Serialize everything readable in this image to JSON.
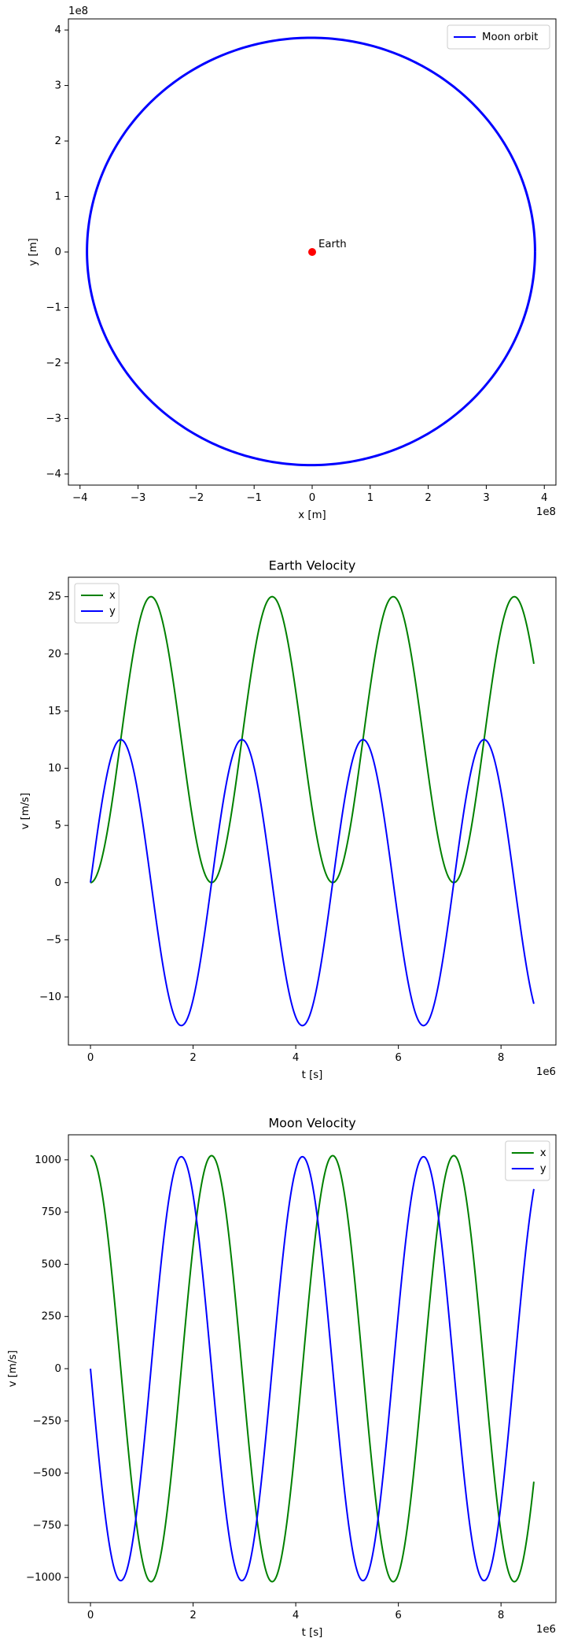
{
  "chart_data": [
    {
      "type": "line",
      "title": "",
      "xlabel": "x [m]",
      "ylabel": "y [m]",
      "x_offset": "1e8",
      "y_offset": "1e8",
      "xlim": [
        -4.2,
        4.2
      ],
      "ylim": [
        -4.2,
        4.2
      ],
      "xticks": [
        -4,
        -3,
        -2,
        -1,
        0,
        1,
        2,
        3,
        4
      ],
      "yticks": [
        -4,
        -3,
        -2,
        -1,
        0,
        1,
        2,
        3,
        4
      ],
      "xtick_labels": [
        "−4",
        "−3",
        "−2",
        "−1",
        "0",
        "1",
        "2",
        "3",
        "4"
      ],
      "ytick_labels": [
        "−4",
        "−3",
        "−2",
        "−1",
        "0",
        "1",
        "2",
        "3",
        "4"
      ],
      "grid": false,
      "legend_position": "top-right",
      "series": [
        {
          "name": "Moon orbit",
          "color": "#0000ff",
          "shape": "ellipse",
          "center": [
            -0.02,
            0.01
          ],
          "radius_x": 3.86,
          "radius_y": 3.85
        }
      ],
      "points": [
        {
          "label": "Earth",
          "x": 0.0,
          "y": 0.0,
          "color": "#ff0000"
        }
      ]
    },
    {
      "type": "line",
      "title": "Earth Velocity",
      "xlabel": "t [s]",
      "ylabel": "v [m/s]",
      "x_offset": "1e6",
      "xlim": [
        -0.43,
        9.07
      ],
      "ylim": [
        -14.2,
        26.7
      ],
      "xticks": [
        0,
        2,
        4,
        6,
        8
      ],
      "yticks": [
        -10,
        -5,
        0,
        5,
        10,
        15,
        20,
        25
      ],
      "xtick_labels": [
        "0",
        "2",
        "4",
        "6",
        "8"
      ],
      "ytick_labels": [
        "−10",
        "−5",
        "0",
        "5",
        "10",
        "15",
        "20",
        "25"
      ],
      "grid": false,
      "legend_position": "top-left",
      "t_end": 8.64,
      "period": 2.36,
      "series": [
        {
          "name": "x",
          "color": "#008000",
          "amplitude": 12.5,
          "offset": 12.5,
          "phase_shape": "one-minus-cos"
        },
        {
          "name": "y",
          "color": "#0000ff",
          "amplitude": 12.5,
          "offset": 0,
          "phase_shape": "sin"
        }
      ]
    },
    {
      "type": "line",
      "title": "Moon Velocity",
      "xlabel": "t [s]",
      "ylabel": "v [m/s]",
      "x_offset": "1e6",
      "xlim": [
        -0.43,
        9.07
      ],
      "ylim": [
        -1120,
        1120
      ],
      "xticks": [
        0,
        2,
        4,
        6,
        8
      ],
      "yticks": [
        -1000,
        -750,
        -500,
        -250,
        0,
        250,
        500,
        750,
        1000
      ],
      "xtick_labels": [
        "0",
        "2",
        "4",
        "6",
        "8"
      ],
      "ytick_labels": [
        "−1000",
        "−750",
        "−500",
        "−250",
        "0",
        "250",
        "500",
        "750",
        "1000"
      ],
      "grid": false,
      "legend_position": "top-right",
      "t_end": 8.64,
      "period": 2.36,
      "series": [
        {
          "name": "x",
          "color": "#008000",
          "amplitude": 1020,
          "offset": 0,
          "phase_shape": "cos"
        },
        {
          "name": "y",
          "color": "#0000ff",
          "amplitude": 1015,
          "offset": 0,
          "phase_shape": "neg-sin"
        }
      ]
    }
  ]
}
